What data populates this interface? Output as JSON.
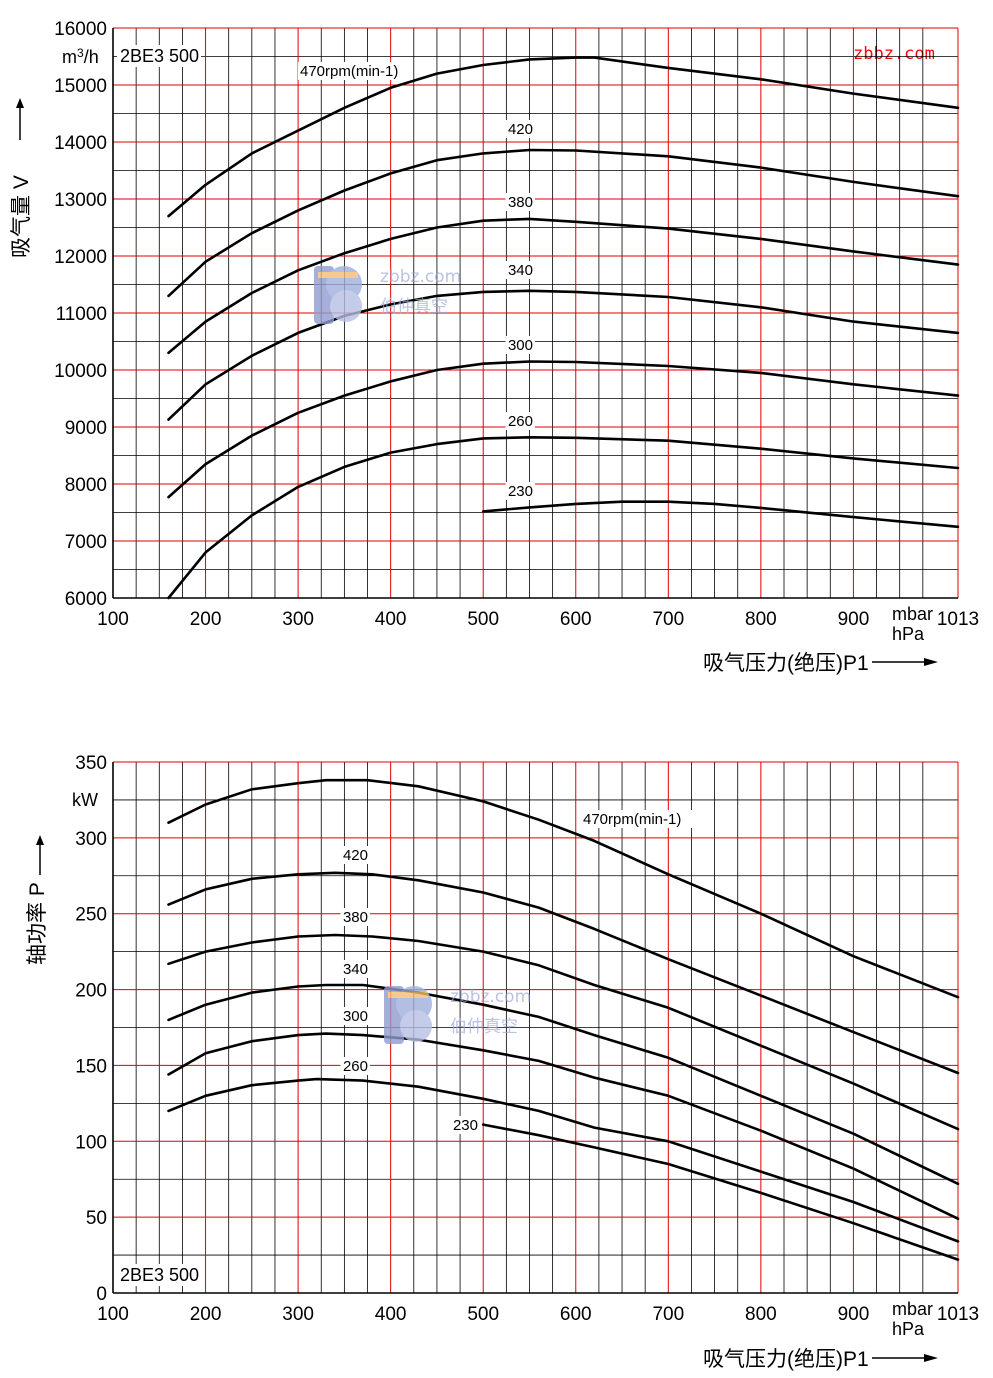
{
  "site_label": "zbbz.com",
  "watermark": {
    "url": "zbbz.com",
    "text": "伯仲真空",
    "icon": "bz-logo-icon"
  },
  "colors": {
    "grid_red": "#e00000",
    "grid_black": "#000000",
    "curve": "#000000",
    "site": "#ff0000"
  },
  "chart_data": [
    {
      "type": "line",
      "model": "2BE3 500",
      "ylabel": "吸气量",
      "ylabel_symbol": "V",
      "unit": "m³/h",
      "unit_text": [
        "m",
        "3",
        "/h"
      ],
      "xlabel": "吸气压力(绝压)P1",
      "x_unit": [
        "mbar",
        "hPa"
      ],
      "xlim": [
        100,
        1013
      ],
      "ylim": [
        6000,
        16000
      ],
      "x_ticks": [
        "100",
        "200",
        "300",
        "400",
        "500",
        "600",
        "700",
        "800",
        "900",
        "1013"
      ],
      "y_ticks": [
        "6000",
        "7000",
        "8000",
        "9000",
        "10000",
        "11000",
        "12000",
        "13000",
        "14000",
        "15000",
        "16000"
      ],
      "series": [
        {
          "name": "470rpm(min-1)",
          "label": "470rpm(min-1)",
          "x": [
            160,
            200,
            250,
            300,
            350,
            400,
            450,
            500,
            550,
            600,
            620,
            700,
            800,
            900,
            1013
          ],
          "y": [
            12700,
            13250,
            13800,
            14200,
            14600,
            14950,
            15200,
            15350,
            15450,
            15480,
            15480,
            15300,
            15100,
            14850,
            14600
          ]
        },
        {
          "name": "420",
          "label": "420",
          "x": [
            160,
            200,
            250,
            300,
            350,
            400,
            450,
            500,
            550,
            600,
            700,
            800,
            900,
            1013
          ],
          "y": [
            11300,
            11900,
            12400,
            12800,
            13150,
            13450,
            13680,
            13800,
            13860,
            13850,
            13750,
            13550,
            13300,
            13050
          ]
        },
        {
          "name": "380",
          "label": "380",
          "x": [
            160,
            200,
            250,
            300,
            350,
            400,
            450,
            500,
            550,
            600,
            700,
            800,
            900,
            1013
          ],
          "y": [
            10300,
            10850,
            11350,
            11750,
            12050,
            12300,
            12500,
            12620,
            12650,
            12600,
            12480,
            12300,
            12080,
            11850
          ]
        },
        {
          "name": "340",
          "label": "340",
          "x": [
            160,
            200,
            250,
            300,
            350,
            400,
            450,
            500,
            550,
            600,
            700,
            800,
            900,
            1013
          ],
          "y": [
            9130,
            9750,
            10250,
            10650,
            10950,
            11150,
            11300,
            11370,
            11390,
            11370,
            11280,
            11100,
            10850,
            10650
          ]
        },
        {
          "name": "300",
          "label": "300",
          "x": [
            160,
            200,
            250,
            300,
            350,
            400,
            450,
            500,
            550,
            600,
            700,
            800,
            900,
            1013
          ],
          "y": [
            7770,
            8350,
            8850,
            9250,
            9550,
            9800,
            10000,
            10110,
            10150,
            10140,
            10070,
            9950,
            9750,
            9550
          ]
        },
        {
          "name": "260",
          "label": "260",
          "x": [
            160,
            200,
            250,
            300,
            350,
            400,
            450,
            500,
            550,
            600,
            700,
            800,
            900,
            1013
          ],
          "y": [
            6000,
            6800,
            7450,
            7950,
            8300,
            8550,
            8700,
            8800,
            8820,
            8810,
            8760,
            8620,
            8450,
            8280
          ]
        },
        {
          "name": "230",
          "label": "230",
          "x": [
            500,
            550,
            600,
            650,
            700,
            750,
            800,
            900,
            1013
          ],
          "y": [
            7520,
            7590,
            7650,
            7690,
            7690,
            7650,
            7580,
            7420,
            7250
          ]
        }
      ]
    },
    {
      "type": "line",
      "model": "2BE3 500",
      "ylabel": "轴功率",
      "ylabel_symbol": "P",
      "unit": "kW",
      "xlabel": "吸气压力(绝压)P1",
      "x_unit": [
        "mbar",
        "hPa"
      ],
      "xlim": [
        100,
        1013
      ],
      "ylim": [
        0,
        350
      ],
      "x_ticks": [
        "100",
        "200",
        "300",
        "400",
        "500",
        "600",
        "700",
        "800",
        "900",
        "1013"
      ],
      "y_ticks": [
        "0",
        "50",
        "100",
        "150",
        "200",
        "250",
        "300",
        "350"
      ],
      "series": [
        {
          "name": "470rpm(min-1)",
          "label": "470rpm(min-1)",
          "x": [
            160,
            200,
            250,
            300,
            330,
            375,
            430,
            500,
            560,
            620,
            700,
            800,
            900,
            1013
          ],
          "y": [
            310,
            322,
            332,
            336,
            338,
            338,
            334,
            324,
            312,
            298,
            276,
            250,
            222,
            195
          ]
        },
        {
          "name": "420",
          "label": "420",
          "x": [
            160,
            200,
            250,
            300,
            340,
            380,
            430,
            500,
            560,
            620,
            700,
            800,
            900,
            1013
          ],
          "y": [
            256,
            266,
            273,
            276,
            277,
            276,
            272,
            264,
            254,
            240,
            220,
            196,
            172,
            145
          ]
        },
        {
          "name": "380",
          "label": "380",
          "x": [
            160,
            200,
            250,
            300,
            340,
            380,
            430,
            500,
            560,
            620,
            700,
            800,
            900,
            1013
          ],
          "y": [
            217,
            225,
            231,
            235,
            236,
            235,
            232,
            225,
            216,
            203,
            188,
            163,
            138,
            108
          ]
        },
        {
          "name": "340",
          "label": "340",
          "x": [
            160,
            200,
            250,
            300,
            330,
            370,
            430,
            500,
            560,
            620,
            700,
            800,
            900,
            1013
          ],
          "y": [
            180,
            190,
            198,
            202,
            203,
            203,
            198,
            190,
            182,
            170,
            155,
            130,
            105,
            72
          ]
        },
        {
          "name": "300",
          "label": "300",
          "x": [
            160,
            200,
            250,
            300,
            330,
            370,
            430,
            500,
            560,
            620,
            700,
            800,
            900,
            1013
          ],
          "y": [
            144,
            158,
            166,
            170,
            171,
            170,
            167,
            160,
            153,
            142,
            130,
            107,
            82,
            49
          ]
        },
        {
          "name": "260",
          "label": "260",
          "x": [
            160,
            200,
            250,
            300,
            320,
            370,
            430,
            500,
            560,
            620,
            700,
            800,
            900,
            1013
          ],
          "y": [
            120,
            130,
            137,
            140,
            141,
            140,
            136,
            128,
            120,
            109,
            100,
            80,
            60,
            34
          ]
        },
        {
          "name": "230",
          "label": "230",
          "x": [
            500,
            560,
            620,
            700,
            800,
            900,
            1013
          ],
          "y": [
            111,
            104,
            96,
            85,
            66,
            46,
            22
          ]
        }
      ]
    }
  ]
}
